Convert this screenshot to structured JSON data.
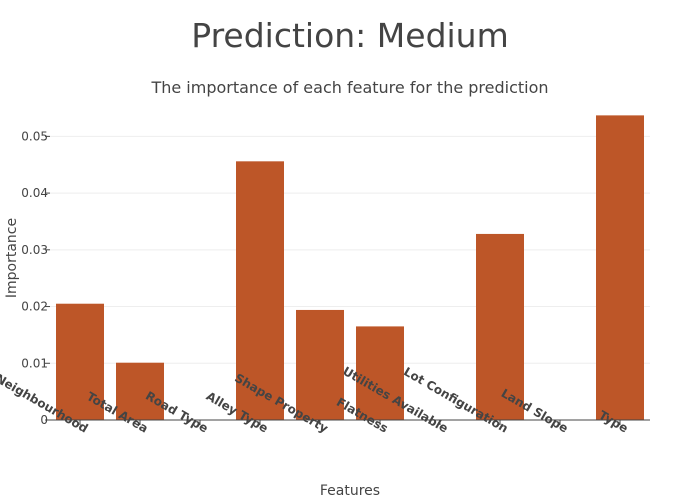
{
  "title": "Prediction: Medium",
  "subtitle": "The importance of each feature for the prediction",
  "colors": {
    "bar": "#BD5628",
    "grid": "#eeeeee",
    "axis": "#444444"
  },
  "chart_data": {
    "type": "bar",
    "title": "Prediction: Medium",
    "subtitle": "The importance of each feature for the prediction",
    "xlabel": "Features",
    "ylabel": "Importance",
    "categories": [
      "Neighbourhood",
      "Total Area",
      "Road Type",
      "Alley Type",
      "Shape Property",
      "Flatness",
      "Utilities Available",
      "Lot Configuration",
      "Land Slope",
      "Type"
    ],
    "values": [
      0.0205,
      0.0101,
      0,
      0.0456,
      0.0194,
      0.0165,
      0,
      0.0328,
      0,
      0.0537
    ],
    "ylim": [
      0,
      0.055
    ],
    "yticks": [
      0,
      0.01,
      0.02,
      0.03,
      0.04,
      0.05
    ],
    "ytick_labels": [
      "0",
      "0.01",
      "0.02",
      "0.03",
      "0.04",
      "0.05"
    ],
    "grid": true,
    "legend": "none"
  }
}
